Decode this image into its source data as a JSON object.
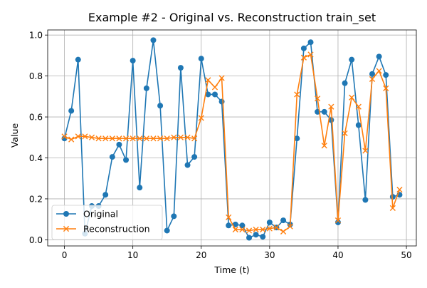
{
  "chart_data": {
    "type": "line",
    "title": "Example #2 - Original vs. Reconstruction train_set",
    "xlabel": "Time (t)",
    "ylabel": "Value",
    "xlim": [
      -2.45,
      51.45
    ],
    "ylim": [
      -0.03,
      1.025
    ],
    "xticks": [
      0,
      10,
      20,
      30,
      40,
      50
    ],
    "yticks": [
      0.0,
      0.2,
      0.4,
      0.6,
      0.8,
      1.0
    ],
    "grid": true,
    "legend_position": "lower-left",
    "x": [
      0,
      1,
      2,
      3,
      4,
      5,
      6,
      7,
      8,
      9,
      10,
      11,
      12,
      13,
      14,
      15,
      16,
      17,
      18,
      19,
      20,
      21,
      22,
      23,
      24,
      25,
      26,
      27,
      28,
      29,
      30,
      31,
      32,
      33,
      34,
      35,
      36,
      37,
      38,
      39,
      40,
      41,
      42,
      43,
      44,
      45,
      46,
      47,
      48,
      49
    ],
    "series": [
      {
        "name": "Original",
        "color": "#1f77b4",
        "marker": "circle",
        "values": [
          0.495,
          0.63,
          0.88,
          0.03,
          0.165,
          0.165,
          0.22,
          0.405,
          0.465,
          0.39,
          0.875,
          0.255,
          0.74,
          0.975,
          0.655,
          0.045,
          0.115,
          0.84,
          0.365,
          0.405,
          0.885,
          0.71,
          0.71,
          0.675,
          0.07,
          0.075,
          0.07,
          0.01,
          0.025,
          0.015,
          0.085,
          0.06,
          0.095,
          0.075,
          0.495,
          0.935,
          0.965,
          0.625,
          0.625,
          0.585,
          0.085,
          0.765,
          0.88,
          0.56,
          0.195,
          0.81,
          0.895,
          0.805,
          0.21,
          0.22
        ]
      },
      {
        "name": "Reconstruction",
        "color": "#ff7f0e",
        "marker": "x",
        "values": [
          0.505,
          0.49,
          0.505,
          0.505,
          0.5,
          0.495,
          0.495,
          0.495,
          0.495,
          0.495,
          0.495,
          0.495,
          0.495,
          0.495,
          0.495,
          0.495,
          0.5,
          0.5,
          0.5,
          0.495,
          0.595,
          0.78,
          0.745,
          0.79,
          0.11,
          0.05,
          0.05,
          0.045,
          0.05,
          0.05,
          0.055,
          0.06,
          0.04,
          0.065,
          0.71,
          0.89,
          0.905,
          0.69,
          0.46,
          0.65,
          0.095,
          0.52,
          0.695,
          0.65,
          0.435,
          0.785,
          0.825,
          0.74,
          0.155,
          0.245
        ]
      }
    ]
  }
}
